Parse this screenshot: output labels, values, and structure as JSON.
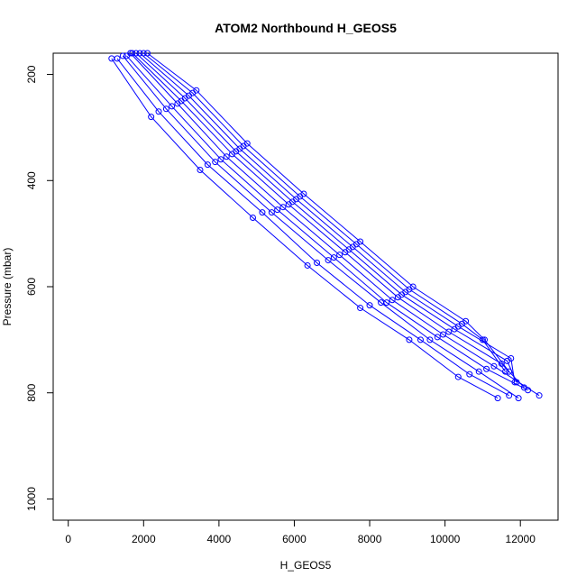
{
  "chart_data": {
    "type": "scatter",
    "title": "ATOM2 Northbound H_GEOS5",
    "xlabel": "H_GEOS5",
    "ylabel": "Pressure (mbar)",
    "xlim": [
      -400,
      13000
    ],
    "ylim": [
      1040,
      160
    ],
    "y_reversed": true,
    "xticks": [
      0,
      2000,
      4000,
      6000,
      8000,
      10000,
      12000
    ],
    "yticks": [
      200,
      400,
      600,
      800,
      1000
    ],
    "xtick_labels": [
      "0",
      "2000",
      "4000",
      "6000",
      "8000",
      "10000",
      "12000"
    ],
    "ytick_labels": [
      "200",
      "400",
      "600",
      "800",
      "1000"
    ],
    "grid": false,
    "legend": "none",
    "marker": "open-circle",
    "line_connected": true,
    "series_color": "#0000ff",
    "series": [
      {
        "x": [
          1150,
          2200,
          3500,
          4900,
          6350,
          7750,
          9050,
          10350,
          11400
        ],
        "y": [
          170,
          280,
          380,
          470,
          560,
          640,
          700,
          770,
          810
        ]
      },
      {
        "x": [
          1300,
          2400,
          3700,
          5150,
          6600,
          8000,
          9350,
          10650,
          11700
        ],
        "y": [
          170,
          270,
          370,
          460,
          555,
          635,
          700,
          765,
          805
        ]
      },
      {
        "x": [
          1450,
          2600,
          3900,
          5400,
          6900,
          8300,
          9600,
          10900,
          11950
        ],
        "y": [
          165,
          265,
          365,
          460,
          550,
          630,
          700,
          760,
          810
        ]
      },
      {
        "x": [
          1550,
          2750,
          4050,
          5550,
          7050,
          8450,
          9800,
          11100,
          12200
        ],
        "y": [
          165,
          260,
          360,
          455,
          545,
          630,
          695,
          755,
          795
        ]
      },
      {
        "x": [
          1650,
          2900,
          4200,
          5700,
          7200,
          8600,
          9950,
          11300,
          12500
        ],
        "y": [
          160,
          255,
          355,
          450,
          540,
          625,
          690,
          750,
          805
        ]
      },
      {
        "x": [
          1700,
          3000,
          4350,
          5850,
          7350,
          8750,
          10100,
          11500,
          12100
        ],
        "y": [
          160,
          250,
          350,
          445,
          535,
          620,
          685,
          745,
          790
        ]
      },
      {
        "x": [
          1800,
          3100,
          4450,
          5950,
          7450,
          8850,
          10250,
          11650,
          11900
        ],
        "y": [
          160,
          245,
          345,
          440,
          530,
          615,
          680,
          740,
          780
        ]
      },
      {
        "x": [
          1900,
          3200,
          4550,
          6050,
          7550,
          8950,
          10350,
          11750,
          11850
        ],
        "y": [
          160,
          240,
          340,
          435,
          525,
          610,
          675,
          735,
          780
        ]
      },
      {
        "x": [
          2000,
          3300,
          4650,
          6150,
          7650,
          9050,
          10450,
          11000,
          11600
        ],
        "y": [
          160,
          235,
          335,
          430,
          520,
          605,
          670,
          700,
          760
        ]
      },
      {
        "x": [
          2100,
          3400,
          4750,
          6250,
          7750,
          9150,
          10550,
          11050,
          11700
        ],
        "y": [
          160,
          230,
          330,
          425,
          515,
          600,
          665,
          700,
          760
        ]
      }
    ]
  }
}
